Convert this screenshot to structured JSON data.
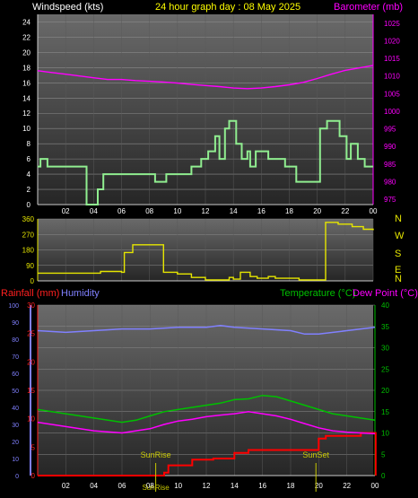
{
  "header": {
    "left_title": "Windspeed (kts)",
    "center_title": "24 hour graph day : 08 May 2025",
    "right_title": "Barometer (mb)"
  },
  "compass_labels": [
    "N",
    "W",
    "S",
    "E",
    "N"
  ],
  "bottom_header": {
    "rain_label": "Rainfall (mm)",
    "humidity_label": "Humidity",
    "temp_label": "Temperature (°C)",
    "dew_label": "Dew Point (°C)"
  },
  "annotations": {
    "sunrise": "SunRise",
    "sunset": "SunSet"
  },
  "colors": {
    "wind": "#90ee90",
    "baro": "#ff00ff",
    "dir": "#e6e600",
    "rain": "#ff0000",
    "humidity": "#8080ff",
    "temp": "#00c000",
    "dew": "#ff00ff",
    "rain_axis": "#ff2020",
    "sun": "#c8c800"
  },
  "chart_data": [
    {
      "type": "line",
      "panel": "wind-baro",
      "x_ticks": [
        "02",
        "04",
        "06",
        "08",
        "10",
        "12",
        "14",
        "16",
        "18",
        "20",
        "22",
        "00"
      ],
      "xlim": [
        0,
        24
      ],
      "y_left_ticks": [
        "0",
        "2",
        "4",
        "6",
        "8",
        "10",
        "12",
        "14",
        "16",
        "18",
        "20",
        "22",
        "24"
      ],
      "ylim_left": [
        0,
        25
      ],
      "y_right_ticks": [
        "975",
        "980",
        "985",
        "990",
        "995",
        "1000",
        "1005",
        "1010",
        "1015",
        "1020",
        "1025"
      ],
      "ylim_right": [
        973.5,
        1027.5
      ],
      "series": [
        {
          "name": "Windspeed (kts)",
          "axis": "left",
          "step": true,
          "points": [
            [
              0,
              5
            ],
            [
              0.2,
              6
            ],
            [
              0.7,
              5
            ],
            [
              3.5,
              0
            ],
            [
              4.3,
              2
            ],
            [
              4.7,
              4
            ],
            [
              8.4,
              3
            ],
            [
              9.2,
              4
            ],
            [
              11,
              5
            ],
            [
              11.7,
              6
            ],
            [
              12.2,
              7
            ],
            [
              12.7,
              9
            ],
            [
              13,
              6
            ],
            [
              13.4,
              10
            ],
            [
              13.7,
              11
            ],
            [
              14.2,
              8
            ],
            [
              14.6,
              6
            ],
            [
              15,
              7
            ],
            [
              15.2,
              5
            ],
            [
              15.6,
              7
            ],
            [
              16.5,
              6
            ],
            [
              17.7,
              5
            ],
            [
              18.5,
              3
            ],
            [
              19.7,
              3
            ],
            [
              20.2,
              10
            ],
            [
              20.7,
              11
            ],
            [
              21.6,
              9
            ],
            [
              22.1,
              6
            ],
            [
              22.4,
              8
            ],
            [
              22.9,
              6
            ],
            [
              23.4,
              5
            ],
            [
              24,
              5
            ]
          ]
        },
        {
          "name": "Barometer (mb)",
          "axis": "right",
          "points": [
            [
              0,
              1011.5
            ],
            [
              1,
              1011
            ],
            [
              2,
              1010.5
            ],
            [
              3,
              1010
            ],
            [
              4,
              1009.5
            ],
            [
              5,
              1009
            ],
            [
              6,
              1009
            ],
            [
              7,
              1008.7
            ],
            [
              8,
              1008.5
            ],
            [
              9,
              1008.3
            ],
            [
              10,
              1008
            ],
            [
              11,
              1007.6
            ],
            [
              12,
              1007.3
            ],
            [
              13,
              1007
            ],
            [
              14,
              1006.6
            ],
            [
              15,
              1006.4
            ],
            [
              16,
              1006.6
            ],
            [
              17,
              1007
            ],
            [
              18,
              1007.5
            ],
            [
              19,
              1008.2
            ],
            [
              20,
              1009.3
            ],
            [
              21,
              1010.5
            ],
            [
              22,
              1011.6
            ],
            [
              23,
              1012.3
            ],
            [
              24,
              1013
            ]
          ]
        }
      ]
    },
    {
      "type": "line",
      "panel": "wind-direction",
      "xlim": [
        0,
        24
      ],
      "y_ticks": [
        "0",
        "90",
        "180",
        "270",
        "360"
      ],
      "ylim": [
        0,
        360
      ],
      "series": [
        {
          "name": "Wind direction",
          "step": true,
          "points": [
            [
              0,
              45
            ],
            [
              4.5,
              55
            ],
            [
              6,
              50
            ],
            [
              6.2,
              165
            ],
            [
              6.8,
              210
            ],
            [
              9,
              50
            ],
            [
              10,
              40
            ],
            [
              11,
              20
            ],
            [
              12,
              5
            ],
            [
              13.7,
              20
            ],
            [
              14,
              10
            ],
            [
              14.5,
              50
            ],
            [
              15.2,
              25
            ],
            [
              15.7,
              15
            ],
            [
              16.5,
              25
            ],
            [
              17,
              15
            ],
            [
              18.7,
              5
            ],
            [
              20.5,
              5
            ],
            [
              20.6,
              340
            ],
            [
              21.5,
              330
            ],
            [
              22.5,
              315
            ],
            [
              23.3,
              300
            ],
            [
              24,
              295
            ]
          ]
        }
      ]
    },
    {
      "type": "line",
      "panel": "temp-rain-humidity",
      "x_ticks": [
        "02",
        "04",
        "06",
        "08",
        "10",
        "12",
        "14",
        "16",
        "18",
        "20",
        "22",
        "00"
      ],
      "xlim": [
        0,
        24
      ],
      "y_humidity_ticks": [
        "0",
        "10",
        "20",
        "30",
        "40",
        "50",
        "60",
        "70",
        "80",
        "90",
        "100"
      ],
      "ylim_humidity": [
        0,
        100
      ],
      "y_rain_ticks": [
        "0",
        "5",
        "10",
        "15",
        "20",
        "25",
        "30"
      ],
      "ylim_rain": [
        0,
        30
      ],
      "y_temp_ticks": [
        "0",
        "5",
        "10",
        "15",
        "20",
        "25",
        "30",
        "35",
        "40"
      ],
      "ylim_temp": [
        0,
        40
      ],
      "series": [
        {
          "name": "Humidity",
          "axis": "humidity",
          "points": [
            [
              0,
              85
            ],
            [
              2,
              84
            ],
            [
              4,
              85
            ],
            [
              6,
              86
            ],
            [
              8,
              86
            ],
            [
              10,
              87
            ],
            [
              12,
              87
            ],
            [
              13,
              88
            ],
            [
              14,
              87
            ],
            [
              16,
              86
            ],
            [
              18,
              85
            ],
            [
              19,
              83
            ],
            [
              20,
              83
            ],
            [
              22,
              85
            ],
            [
              24,
              87
            ]
          ]
        },
        {
          "name": "Rainfall (mm)",
          "axis": "rain",
          "step": true,
          "points": [
            [
              0,
              0
            ],
            [
              8,
              0
            ],
            [
              9,
              0.5
            ],
            [
              9.3,
              1.8
            ],
            [
              10.8,
              1.8
            ],
            [
              11,
              2.8
            ],
            [
              12.5,
              3
            ],
            [
              14,
              4
            ],
            [
              15,
              4.5
            ],
            [
              19.5,
              4.5
            ],
            [
              20,
              6.5
            ],
            [
              20.5,
              7
            ],
            [
              23,
              7.5
            ],
            [
              24,
              7.5
            ],
            [
              24.05,
              0
            ]
          ]
        },
        {
          "name": "Temperature (°C)",
          "axis": "temp",
          "points": [
            [
              0,
              15.5
            ],
            [
              2,
              14.5
            ],
            [
              4,
              13.5
            ],
            [
              6,
              12.5
            ],
            [
              7,
              13
            ],
            [
              8,
              14
            ],
            [
              9,
              15
            ],
            [
              10,
              15.5
            ],
            [
              11,
              16
            ],
            [
              12,
              16.5
            ],
            [
              13,
              17
            ],
            [
              14,
              17.8
            ],
            [
              15,
              18
            ],
            [
              16,
              18.8
            ],
            [
              17,
              18.5
            ],
            [
              18,
              17.5
            ],
            [
              19,
              16.5
            ],
            [
              20,
              15.5
            ],
            [
              21,
              14.5
            ],
            [
              22,
              14
            ],
            [
              23,
              13.5
            ],
            [
              24,
              13
            ]
          ]
        },
        {
          "name": "Dew Point (°C)",
          "axis": "temp",
          "points": [
            [
              0,
              12.5
            ],
            [
              2,
              11.5
            ],
            [
              4,
              10.5
            ],
            [
              6,
              10
            ],
            [
              7,
              10.5
            ],
            [
              8,
              11
            ],
            [
              9,
              12
            ],
            [
              10,
              12.8
            ],
            [
              11,
              13.2
            ],
            [
              12,
              13.8
            ],
            [
              13,
              14.2
            ],
            [
              14,
              14.5
            ],
            [
              15,
              15
            ],
            [
              16,
              14.5
            ],
            [
              17,
              14
            ],
            [
              18,
              13.2
            ],
            [
              19,
              12.2
            ],
            [
              20,
              11.2
            ],
            [
              21,
              10.5
            ],
            [
              22,
              10.2
            ],
            [
              23,
              10
            ],
            [
              24,
              9.8
            ]
          ]
        }
      ],
      "markers": [
        {
          "label": "SunRise",
          "x": 8.4
        },
        {
          "label": "SunSet",
          "x": 19.8
        }
      ]
    }
  ]
}
